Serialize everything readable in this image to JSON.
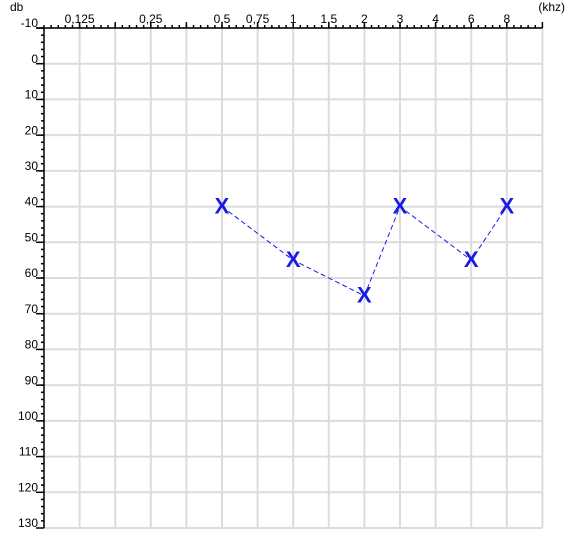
{
  "chart_data": {
    "type": "audiogram",
    "y_label": "db",
    "x_label": "(khz)",
    "categories": [
      "0,125",
      null,
      "0,25",
      null,
      "0,5",
      "0,75",
      "1",
      "1,5",
      "2",
      "3",
      "4",
      "6",
      "8",
      null
    ],
    "ylim": [
      -10,
      130
    ],
    "y_inverted": true,
    "yticks": [
      -10,
      0,
      10,
      20,
      30,
      40,
      50,
      60,
      70,
      80,
      90,
      100,
      110,
      120,
      130
    ],
    "grid": true,
    "series": [
      {
        "marker": "X",
        "color": "#1a1ae6",
        "x": [
          "0,5",
          "1",
          "2",
          "3",
          "6",
          "8"
        ],
        "values": [
          40,
          55,
          65,
          40,
          55,
          40
        ]
      }
    ]
  }
}
